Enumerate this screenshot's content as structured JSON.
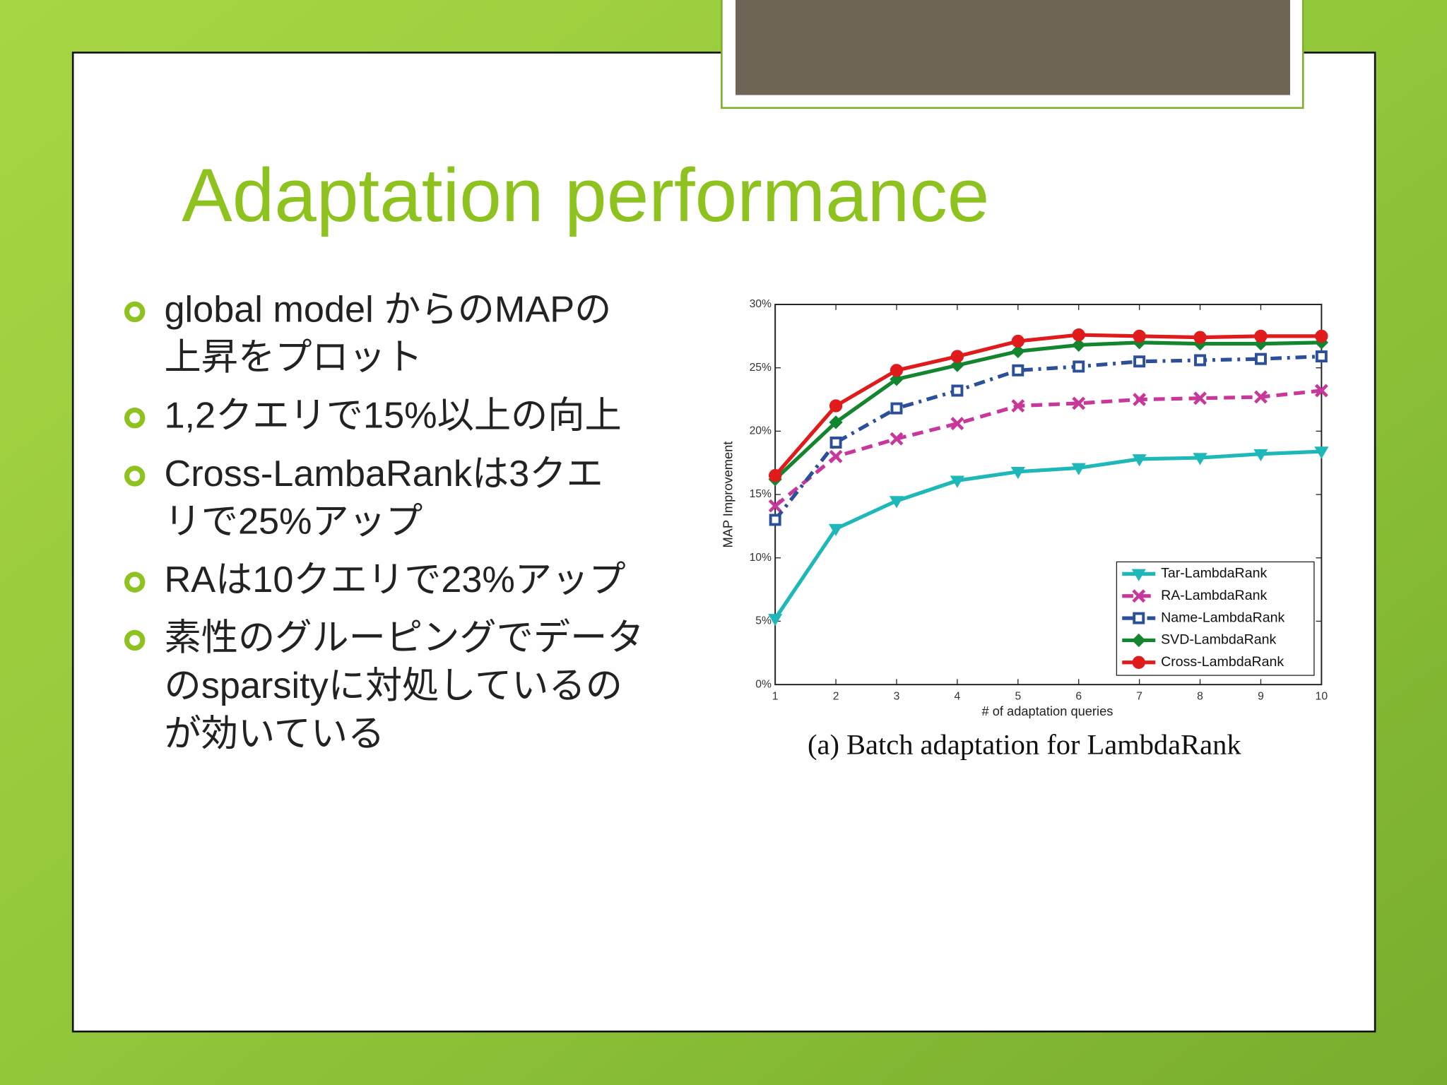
{
  "slide": {
    "title": "Adaptation performance",
    "bullets": [
      [
        "global model からのMAPの",
        "上昇をプロット"
      ],
      [
        "1,2クエリで15%以上の向上"
      ],
      [
        "Cross-LambaRankは3クエ",
        "リで25%アップ"
      ],
      [
        "RAは10クエリで23%アップ"
      ],
      [
        "素性のグルーピングでデータ",
        "のsparsityに対処しているの",
        "が効いている"
      ]
    ]
  },
  "chart_data": {
    "type": "line",
    "x_label": "# of adaptation queries",
    "y_label": "MAP Improvement",
    "caption": "(a) Batch adaptation for LambdaRank",
    "x": [
      1,
      2,
      3,
      4,
      5,
      6,
      7,
      8,
      9,
      10
    ],
    "xlim": [
      1,
      10
    ],
    "xticks": [
      1,
      2,
      3,
      4,
      5,
      6,
      7,
      8,
      9,
      10
    ],
    "ylim": [
      0,
      30
    ],
    "yticks": [
      {
        "value": 0,
        "label": "0%"
      },
      {
        "value": 5,
        "label": "5%"
      },
      {
        "value": 10,
        "label": "10%"
      },
      {
        "value": 15,
        "label": "15%"
      },
      {
        "value": 20,
        "label": "20%"
      },
      {
        "value": 25,
        "label": "25%"
      },
      {
        "value": 30,
        "label": "30%"
      }
    ],
    "legend": "lower right",
    "series": [
      {
        "name": "Tar-LambdaRank",
        "color": "#1fb8b8",
        "marker": "triangle",
        "dash": "solid",
        "values": [
          5.2,
          12.3,
          14.5,
          16.1,
          16.8,
          17.1,
          17.8,
          17.9,
          18.2,
          18.4
        ]
      },
      {
        "name": "RA-LambdaRank",
        "color": "#c8389a",
        "marker": "x",
        "dash": "dashed",
        "values": [
          14.1,
          18.0,
          19.4,
          20.6,
          22.0,
          22.2,
          22.5,
          22.6,
          22.7,
          23.2
        ]
      },
      {
        "name": "Name-LambdaRank",
        "color": "#2c4f9a",
        "marker": "square",
        "dash": "dashdot",
        "values": [
          13.0,
          19.1,
          21.8,
          23.2,
          24.8,
          25.1,
          25.5,
          25.6,
          25.7,
          25.9
        ]
      },
      {
        "name": "SVD-LambdaRank",
        "color": "#13852e",
        "marker": "diamond",
        "dash": "solid",
        "values": [
          16.2,
          20.7,
          24.1,
          25.2,
          26.3,
          26.8,
          27.0,
          26.9,
          26.9,
          27.0
        ]
      },
      {
        "name": "Cross-LambdaRank",
        "color": "#e01b1b",
        "marker": "circle",
        "dash": "solid",
        "values": [
          16.5,
          22.0,
          24.8,
          25.9,
          27.1,
          27.6,
          27.5,
          27.4,
          27.5,
          27.5
        ]
      }
    ]
  }
}
